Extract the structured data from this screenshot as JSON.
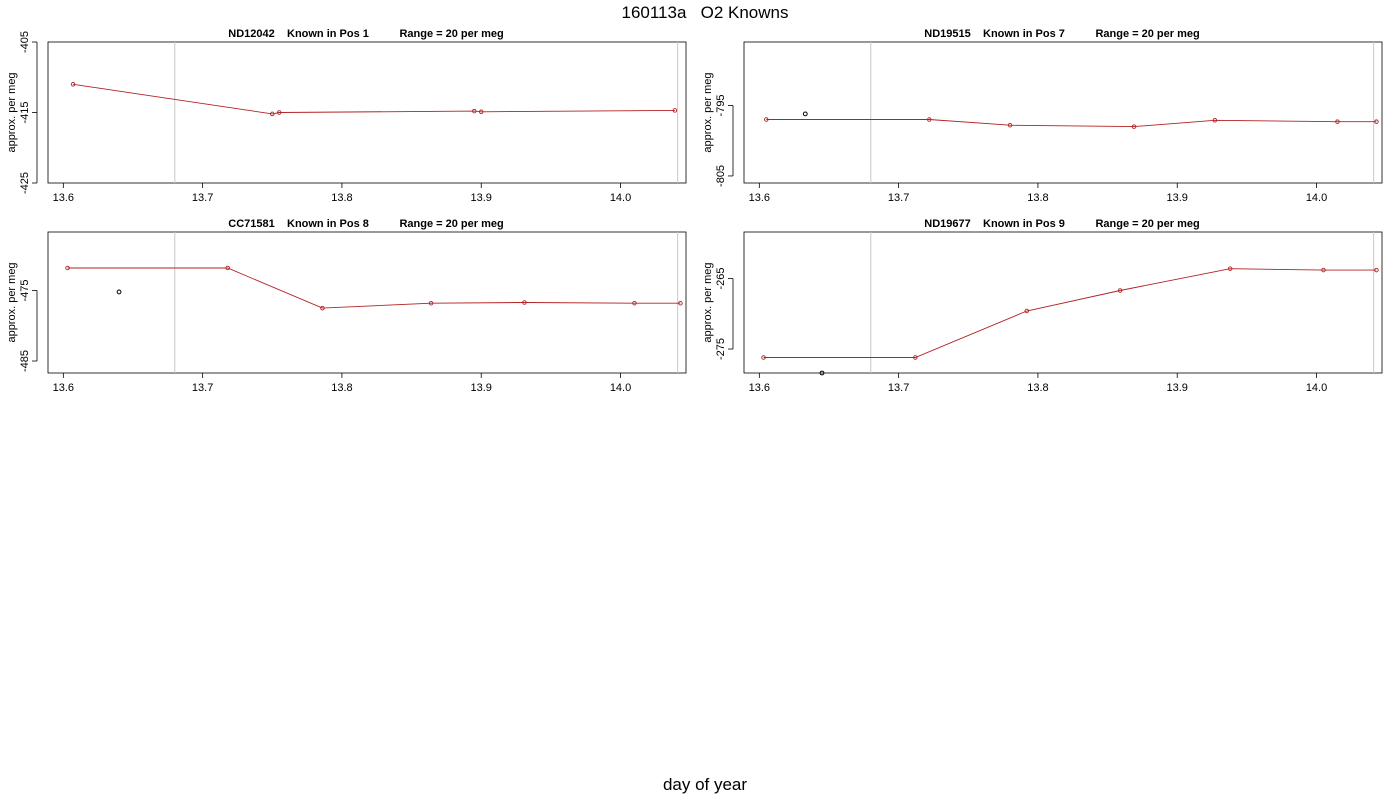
{
  "figure": {
    "title": "160113a   O2 Knowns",
    "xlabel": "day of year"
  },
  "chart_data": [
    {
      "type": "line",
      "title": "ND12042    Known in Pos 1          Range = 20 per meg",
      "ylabel": "approx. per meg",
      "xlim": [
        13.589,
        14.047
      ],
      "ylim": [
        -425,
        -405
      ],
      "xticks": [
        "13.6",
        "13.7",
        "13.8",
        "13.9",
        "14.0"
      ],
      "yticks": [
        "-405",
        "-415",
        "-425"
      ],
      "vlines": [
        13.68,
        14.041
      ],
      "series": [
        {
          "x": [
            13.607,
            13.75,
            13.755,
            13.895,
            13.9,
            14.039
          ],
          "y": [
            -411.0,
            -415.2,
            -415.0,
            -414.8,
            -414.9,
            -414.7
          ]
        }
      ],
      "outliers": []
    },
    {
      "type": "line",
      "title": "ND19515    Known in Pos 7          Range = 20 per meg",
      "ylabel": "approx. per meg",
      "xlim": [
        13.589,
        14.047
      ],
      "ylim": [
        -806,
        -786
      ],
      "xticks": [
        "13.6",
        "13.7",
        "13.8",
        "13.9",
        "14.0"
      ],
      "yticks": [
        "-795",
        "-805"
      ],
      "vlines": [
        13.68,
        14.041
      ],
      "series": [
        {
          "x": [
            13.605,
            13.722,
            13.78,
            13.869,
            13.927,
            14.015,
            14.043
          ],
          "y": [
            -797.0,
            -797.0,
            -797.8,
            -798.0,
            -797.1,
            -797.3,
            -797.3
          ]
        }
      ],
      "outliers": [
        {
          "x": 13.633,
          "y": -796.2
        }
      ]
    },
    {
      "type": "line",
      "title": "CC71581    Known in Pos 8          Range = 20 per meg",
      "ylabel": "approx. per meg",
      "xlim": [
        13.589,
        14.047
      ],
      "ylim": [
        -486.7,
        -466.7
      ],
      "xticks": [
        "13.6",
        "13.7",
        "13.8",
        "13.9",
        "14.0"
      ],
      "yticks": [
        "-475",
        "-485"
      ],
      "vlines": [
        13.68,
        14.041
      ],
      "series": [
        {
          "x": [
            13.603,
            13.718,
            13.786,
            13.864,
            13.931,
            14.01,
            14.043
          ],
          "y": [
            -471.8,
            -471.8,
            -477.5,
            -476.8,
            -476.7,
            -476.8,
            -476.8
          ]
        }
      ],
      "outliers": [
        {
          "x": 13.64,
          "y": -475.2
        }
      ]
    },
    {
      "type": "line",
      "title": "ND19677    Known in Pos 9          Range = 20 per meg",
      "ylabel": "approx. per meg",
      "xlim": [
        13.589,
        14.047
      ],
      "ylim": [
        -278.4,
        -258.4
      ],
      "xticks": [
        "13.6",
        "13.7",
        "13.8",
        "13.9",
        "14.0"
      ],
      "yticks": [
        "-265",
        "-275"
      ],
      "vlines": [
        13.68,
        14.041
      ],
      "series": [
        {
          "x": [
            13.603,
            13.712,
            13.792,
            13.859,
            13.938,
            14.005,
            14.043
          ],
          "y": [
            -276.2,
            -276.2,
            -269.6,
            -266.7,
            -263.6,
            -263.8,
            -263.8
          ]
        }
      ],
      "outliers": [
        {
          "x": 13.645,
          "y": -278.4
        }
      ]
    }
  ]
}
